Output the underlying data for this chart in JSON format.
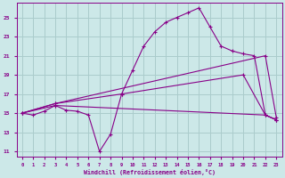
{
  "xlabel": "Windchill (Refroidissement éolien,°C)",
  "bg_color": "#cce8e8",
  "grid_color": "#aacccc",
  "line_color": "#880088",
  "xlim": [
    -0.5,
    23.5
  ],
  "ylim": [
    10.5,
    26.5
  ],
  "xticks": [
    0,
    1,
    2,
    3,
    4,
    5,
    6,
    7,
    8,
    9,
    10,
    11,
    12,
    13,
    14,
    15,
    16,
    17,
    18,
    19,
    20,
    21,
    22,
    23
  ],
  "yticks": [
    11,
    13,
    15,
    17,
    19,
    21,
    23,
    25
  ],
  "lines": [
    {
      "x": [
        0,
        1,
        2,
        3,
        4,
        5,
        6,
        7,
        8,
        9,
        10,
        11,
        12,
        13,
        14,
        15,
        16,
        17,
        18,
        19,
        20,
        21,
        22,
        23
      ],
      "y": [
        15,
        14.8,
        15.2,
        15.8,
        15.3,
        15.2,
        14.8,
        11.0,
        12.8,
        17.0,
        19.5,
        22.0,
        23.5,
        24.5,
        25.0,
        25.5,
        26.0,
        24.0,
        22.0,
        21.5,
        21.2,
        21.0,
        14.8,
        14.3
      ]
    },
    {
      "x": [
        0,
        3,
        22,
        23
      ],
      "y": [
        15,
        16,
        21,
        14.5
      ]
    },
    {
      "x": [
        0,
        3,
        9,
        20,
        22,
        23
      ],
      "y": [
        15,
        16,
        17,
        19,
        14.8,
        14.3
      ]
    },
    {
      "x": [
        0,
        3,
        22,
        23
      ],
      "y": [
        15,
        15.8,
        14.8,
        14.3
      ]
    }
  ]
}
